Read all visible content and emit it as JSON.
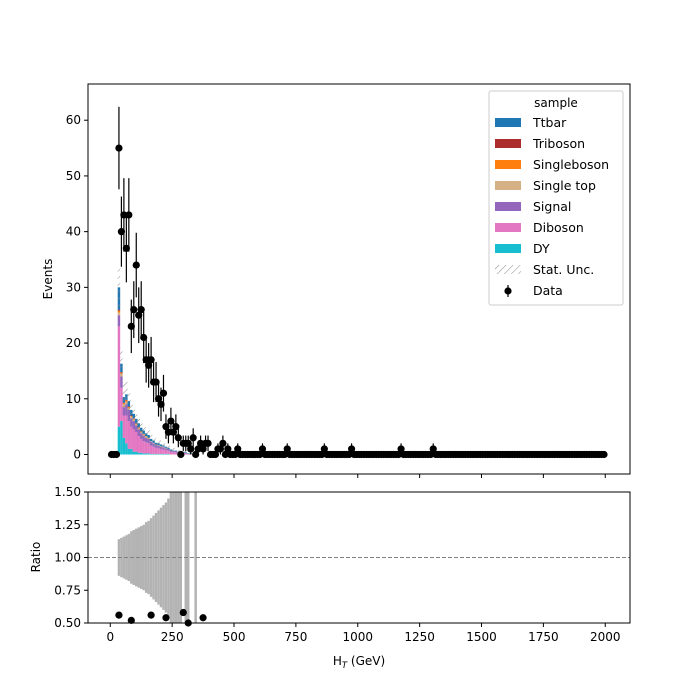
{
  "chart_data": {
    "type": "bar",
    "top_panel": {
      "ylabel": "Events",
      "xlim": [
        -90,
        2100
      ],
      "ylim": [
        -3.5,
        66.5
      ],
      "yticks": [
        0,
        10,
        20,
        30,
        40,
        50,
        60
      ],
      "bin_width": 10,
      "legend": {
        "title": "sample",
        "placement": "top-right",
        "entries": [
          {
            "label": "Ttbar",
            "color": "#1f77b4"
          },
          {
            "label": "Triboson",
            "color": "#ac2d2d"
          },
          {
            "label": "Singleboson",
            "color": "#ff7f0e"
          },
          {
            "label": "Single top",
            "color": "#d5b185"
          },
          {
            "label": "Signal",
            "color": "#9467bd"
          },
          {
            "label": "Diboson",
            "color": "#e377c2"
          },
          {
            "label": "DY",
            "color": "#17becf"
          },
          {
            "label": "Stat. Unc.",
            "color": "#888888"
          },
          {
            "label": "Data",
            "color": "#000000"
          }
        ]
      },
      "mc_stack": {
        "bin_lo": [
          30,
          40,
          50,
          60,
          70,
          80,
          90,
          100,
          110,
          120,
          130,
          140,
          150,
          160,
          170,
          180,
          190,
          200,
          210,
          220,
          230,
          240,
          250,
          260,
          270,
          280,
          290,
          300,
          310,
          320
        ],
        "DY": [
          5,
          6,
          3,
          2,
          1,
          1,
          0.5,
          0.5,
          0.3,
          0.3,
          0.2,
          0.2,
          0.2,
          0.1,
          0.1,
          0.1,
          0.1,
          0.1,
          0.1,
          0.1,
          0.1,
          0,
          0,
          0,
          0,
          0,
          0,
          0,
          0,
          0
        ],
        "Diboson": [
          18,
          6,
          4,
          5,
          5,
          4,
          4,
          3.5,
          3,
          2.5,
          2.2,
          2,
          1.8,
          1.5,
          1.3,
          1.1,
          1,
          0.9,
          0.8,
          0.7,
          0.6,
          0.5,
          0.4,
          0.4,
          0.3,
          0.2,
          0.2,
          0.2,
          0.1,
          0.1
        ],
        "Signal": [
          2,
          2,
          1.5,
          2,
          2,
          1.5,
          1.5,
          1.2,
          1.2,
          1,
          1,
          0.8,
          0.8,
          0.7,
          0.6,
          0.5,
          0.5,
          0.4,
          0.4,
          0.3,
          0.3,
          0.2,
          0.2,
          0.2,
          0.1,
          0.1,
          0.1,
          0.1,
          0,
          0
        ],
        "Single top": [
          0.5,
          0.5,
          0.5,
          0.5,
          0.3,
          0.3,
          0.3,
          0.2,
          0.2,
          0.2,
          0.2,
          0.2,
          0.1,
          0.1,
          0.1,
          0.1,
          0.1,
          0.1,
          0.1,
          0.1,
          0,
          0,
          0,
          0,
          0,
          0,
          0,
          0,
          0,
          0
        ],
        "Singleboson": [
          0.3,
          0.2,
          0.2,
          0.2,
          0.2,
          0.1,
          0.1,
          0.1,
          0.1,
          0.1,
          0.1,
          0.1,
          0.1,
          0,
          0,
          0,
          0,
          0,
          0,
          0,
          0,
          0,
          0,
          0,
          0,
          0,
          0,
          0,
          0,
          0
        ],
        "Triboson": [
          0.2,
          0.1,
          0.1,
          0.1,
          0.1,
          0.1,
          0.1,
          0.1,
          0.1,
          0.1,
          0,
          0,
          0,
          0,
          0,
          0,
          0,
          0,
          0,
          0,
          0,
          0,
          0,
          0,
          0,
          0,
          0,
          0,
          0,
          0
        ],
        "Ttbar": [
          4,
          1.5,
          1,
          1,
          1,
          1,
          0.8,
          0.8,
          0.7,
          0.6,
          0.6,
          0.5,
          0.5,
          0.4,
          0.4,
          0.3,
          0.3,
          0.3,
          0.2,
          0.2,
          0.2,
          0.2,
          0.1,
          0.1,
          0.1,
          0.1,
          0.1,
          0.1,
          0.1,
          0.1
        ],
        "stat_unc": [
          4,
          3,
          2.5,
          2.2,
          2,
          1.8,
          1.6,
          1.5,
          1.4,
          1.3,
          1.2,
          1.1,
          1,
          0.9,
          0.9,
          0.8,
          0.8,
          0.7,
          0.7,
          0.6,
          0.6,
          0.5,
          0.5,
          0.5,
          0.4,
          0.4,
          0.3,
          0.3,
          0.2,
          0.2
        ]
      },
      "data_points": {
        "x": [
          5,
          15,
          25,
          35,
          45,
          55,
          65,
          75,
          85,
          95,
          105,
          115,
          125,
          135,
          145,
          155,
          165,
          175,
          185,
          195,
          205,
          215,
          225,
          235,
          245,
          255,
          265,
          275,
          285,
          295,
          305,
          315,
          325,
          335,
          345,
          355,
          365,
          375,
          385,
          395,
          405,
          415,
          425,
          435,
          445,
          455,
          465,
          475,
          485,
          495,
          505,
          515,
          525,
          535,
          545
        ],
        "y": [
          0,
          0,
          0,
          55,
          40,
          43,
          37,
          43,
          23,
          26,
          34,
          25,
          26,
          21,
          17,
          16,
          17,
          13,
          13,
          10,
          9,
          11,
          5,
          4,
          6,
          4,
          5,
          3,
          0,
          2,
          2,
          2,
          1,
          3,
          0,
          1,
          2,
          1,
          2,
          2,
          0,
          0,
          0,
          1,
          1,
          2,
          0,
          1,
          0,
          0,
          0,
          1,
          0,
          0,
          0
        ],
        "err": [
          0,
          0,
          0,
          7.4,
          6.3,
          6.6,
          6.1,
          6.6,
          4.8,
          5.1,
          5.8,
          5,
          5.1,
          4.6,
          4.1,
          4,
          4.1,
          3.6,
          3.6,
          3.2,
          3,
          3.3,
          2.2,
          2,
          2.4,
          2,
          2.2,
          1.7,
          0,
          1.4,
          1.4,
          1.4,
          1,
          1.7,
          0,
          1,
          1.4,
          1,
          1.4,
          1.4,
          0,
          0,
          0,
          1,
          1,
          1.4,
          0,
          1,
          0,
          0,
          0,
          1,
          0,
          0,
          0
        ],
        "tail_zero_from": 555,
        "tail_zero_to": 2000,
        "isolated_ones": [
          615,
          715,
          865,
          975,
          1175,
          1305
        ]
      }
    },
    "ratio_panel": {
      "ylabel": "Ratio",
      "xlabel": "H_T (GeV)",
      "ylim": [
        0.5,
        1.5
      ],
      "yticks": [
        0.5,
        0.75,
        1.0,
        1.25,
        1.5
      ],
      "ytick_labels": [
        "0.50",
        "0.75",
        "1.00",
        "1.25",
        "1.50"
      ],
      "reference_line": 1.0,
      "unc_band": {
        "bin_lo": [
          30,
          40,
          50,
          60,
          70,
          80,
          90,
          100,
          110,
          120,
          130,
          140,
          150,
          160,
          170,
          180,
          190,
          200,
          210,
          220,
          230,
          240,
          250,
          260,
          270,
          280,
          290,
          300,
          310,
          320,
          330,
          340
        ],
        "lo": [
          0.86,
          0.85,
          0.84,
          0.83,
          0.82,
          0.8,
          0.79,
          0.78,
          0.77,
          0.76,
          0.75,
          0.73,
          0.72,
          0.7,
          0.68,
          0.66,
          0.64,
          0.62,
          0.6,
          0.58,
          0.55,
          0.5,
          0.5,
          0.5,
          0.5,
          0.5,
          0,
          0.5,
          0.5,
          0,
          0,
          0.5
        ],
        "hi": [
          1.14,
          1.15,
          1.16,
          1.17,
          1.18,
          1.2,
          1.21,
          1.22,
          1.23,
          1.24,
          1.25,
          1.27,
          1.28,
          1.3,
          1.32,
          1.34,
          1.36,
          1.38,
          1.4,
          1.42,
          1.45,
          1.5,
          1.5,
          1.5,
          1.5,
          1.5,
          0,
          1.5,
          1.5,
          0,
          0,
          1.5
        ]
      },
      "points": {
        "x": [
          35,
          85,
          165,
          225,
          295,
          315,
          375
        ],
        "y": [
          0.56,
          0.52,
          0.56,
          0.54,
          0.58,
          0.5,
          0.54
        ]
      }
    },
    "xticks": [
      0,
      250,
      500,
      750,
      1000,
      1250,
      1500,
      1750,
      2000
    ]
  }
}
